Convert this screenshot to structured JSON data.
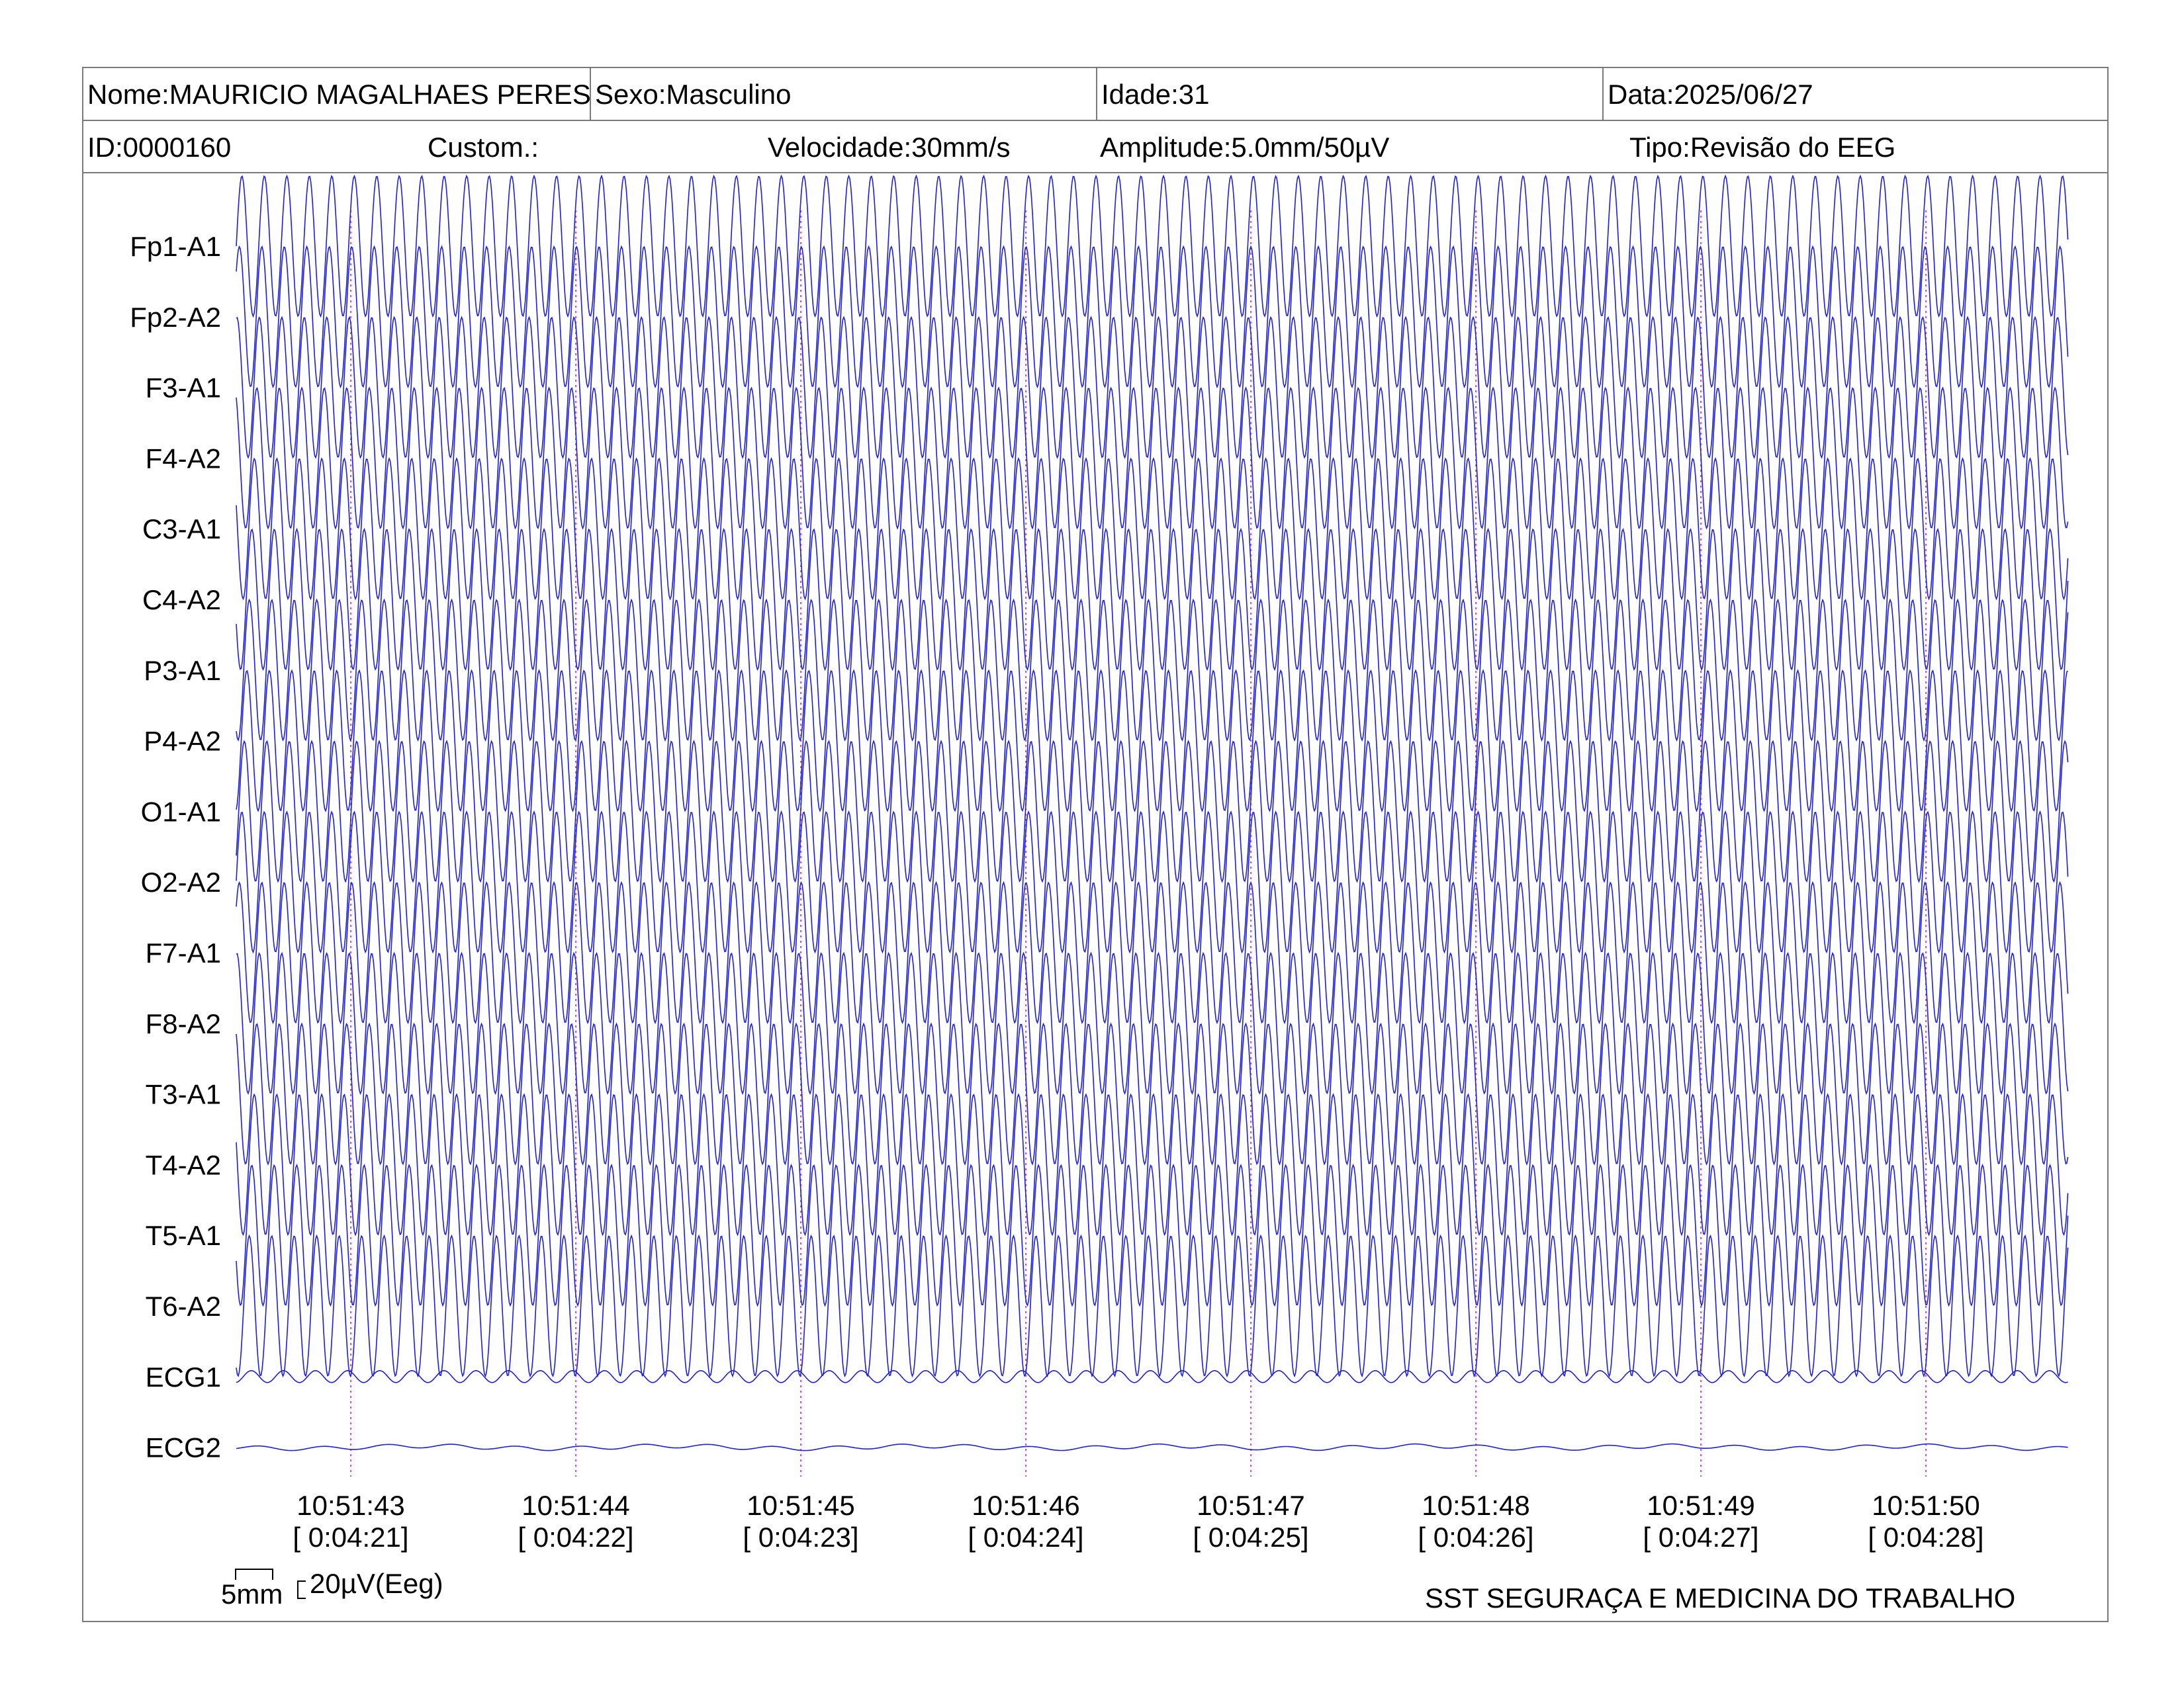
{
  "header": {
    "nome": "Nome:MAURICIO MAGALHAES PERES",
    "sexo": "Sexo:Masculino",
    "idade": "Idade:31",
    "data": "Data:2025/06/27",
    "id": "ID:0000160",
    "custom": "Custom.:",
    "velocidade": "Velocidade:30mm/s",
    "amplitude": "Amplitude:5.0mm/50µV",
    "tipo": "Tipo:Revisão do EEG"
  },
  "chart_data": {
    "type": "line",
    "title": "",
    "xlabel": "",
    "ylabel": "",
    "grid": false,
    "channels": [
      "Fp1-A1",
      "Fp2-A2",
      "F3-A1",
      "F4-A2",
      "C3-A1",
      "C4-A2",
      "P3-A1",
      "P4-A2",
      "O1-A1",
      "O2-A2",
      "F7-A1",
      "F8-A2",
      "T3-A1",
      "T4-A2",
      "T5-A1",
      "T6-A2",
      "ECG1",
      "ECG2"
    ],
    "time_marks": [
      {
        "clock": "10:51:43",
        "elapsed": "[ 0:04:21]"
      },
      {
        "clock": "10:51:44",
        "elapsed": "[ 0:04:22]"
      },
      {
        "clock": "10:51:45",
        "elapsed": "[ 0:04:23]"
      },
      {
        "clock": "10:51:46",
        "elapsed": "[ 0:04:24]"
      },
      {
        "clock": "10:51:47",
        "elapsed": "[ 0:04:25]"
      },
      {
        "clock": "10:51:48",
        "elapsed": "[ 0:04:26]"
      },
      {
        "clock": "10:51:49",
        "elapsed": "[ 0:04:27]"
      },
      {
        "clock": "10:51:50",
        "elapsed": "[ 0:04:28]"
      }
    ],
    "duration_s": 8.15,
    "eeg_frequency_hz": 10,
    "ecg1_frequency_hz": 7,
    "ecg2_frequency_hz": 3.5,
    "eeg_amplitude_uv": 106,
    "ecg1_amplitude_uv": 9,
    "ecg2_amplitude_uv": 3,
    "trace_color": "#1f1fd6",
    "marker_color": "#d24fd2",
    "scale_time": "5mm",
    "scale_amplitude": "20µV(Eeg)"
  },
  "footer": {
    "company": "SST SEGURAÇA E MEDICINA DO TRABALHO"
  }
}
